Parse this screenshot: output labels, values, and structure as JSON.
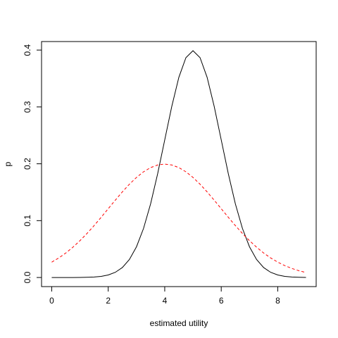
{
  "chart_data": {
    "type": "line",
    "xlabel": "estimated utility",
    "ylabel": "p",
    "x": [
      0,
      0.25,
      0.5,
      0.75,
      1,
      1.25,
      1.5,
      1.75,
      2,
      2.25,
      2.5,
      2.75,
      3,
      3.25,
      3.5,
      3.75,
      4,
      4.25,
      4.5,
      4.75,
      5,
      5.25,
      5.5,
      5.75,
      6,
      6.25,
      6.5,
      6.75,
      7,
      7.25,
      7.5,
      7.75,
      8,
      8.25,
      8.5,
      8.75,
      9
    ],
    "series": [
      {
        "color": "#000000",
        "dashed": false,
        "values": [
          0,
          0,
          0,
          0,
          0.0001,
          0.0004,
          0.0009,
          0.002,
          0.0044,
          0.0091,
          0.0175,
          0.0317,
          0.054,
          0.0863,
          0.1295,
          0.1826,
          0.242,
          0.3011,
          0.3521,
          0.3867,
          0.3989,
          0.3867,
          0.3521,
          0.3011,
          0.242,
          0.1826,
          0.1295,
          0.0863,
          0.054,
          0.0317,
          0.0175,
          0.0091,
          0.0044,
          0.002,
          0.0009,
          0.0004,
          0.0001
        ]
      },
      {
        "color": "#ff0000",
        "dashed": true,
        "values": [
          0.027,
          0.0344,
          0.0431,
          0.0533,
          0.0648,
          0.0775,
          0.0913,
          0.1059,
          0.121,
          0.136,
          0.1506,
          0.1641,
          0.176,
          0.1859,
          0.1933,
          0.1979,
          0.1995,
          0.1979,
          0.1933,
          0.1859,
          0.176,
          0.1641,
          0.1506,
          0.136,
          0.121,
          0.1059,
          0.0913,
          0.0775,
          0.0648,
          0.0533,
          0.0431,
          0.0344,
          0.027,
          0.0209,
          0.0159,
          0.0119,
          0.0088
        ]
      }
    ],
    "xlim": [
      -0.36,
      9.36
    ],
    "ylim": [
      -0.016,
      0.415
    ],
    "xticks": [
      0,
      2,
      4,
      6,
      8
    ],
    "yticks": [
      {
        "value": 0,
        "label": "0.0"
      },
      0.1,
      0.2,
      0.3,
      0.4
    ]
  }
}
